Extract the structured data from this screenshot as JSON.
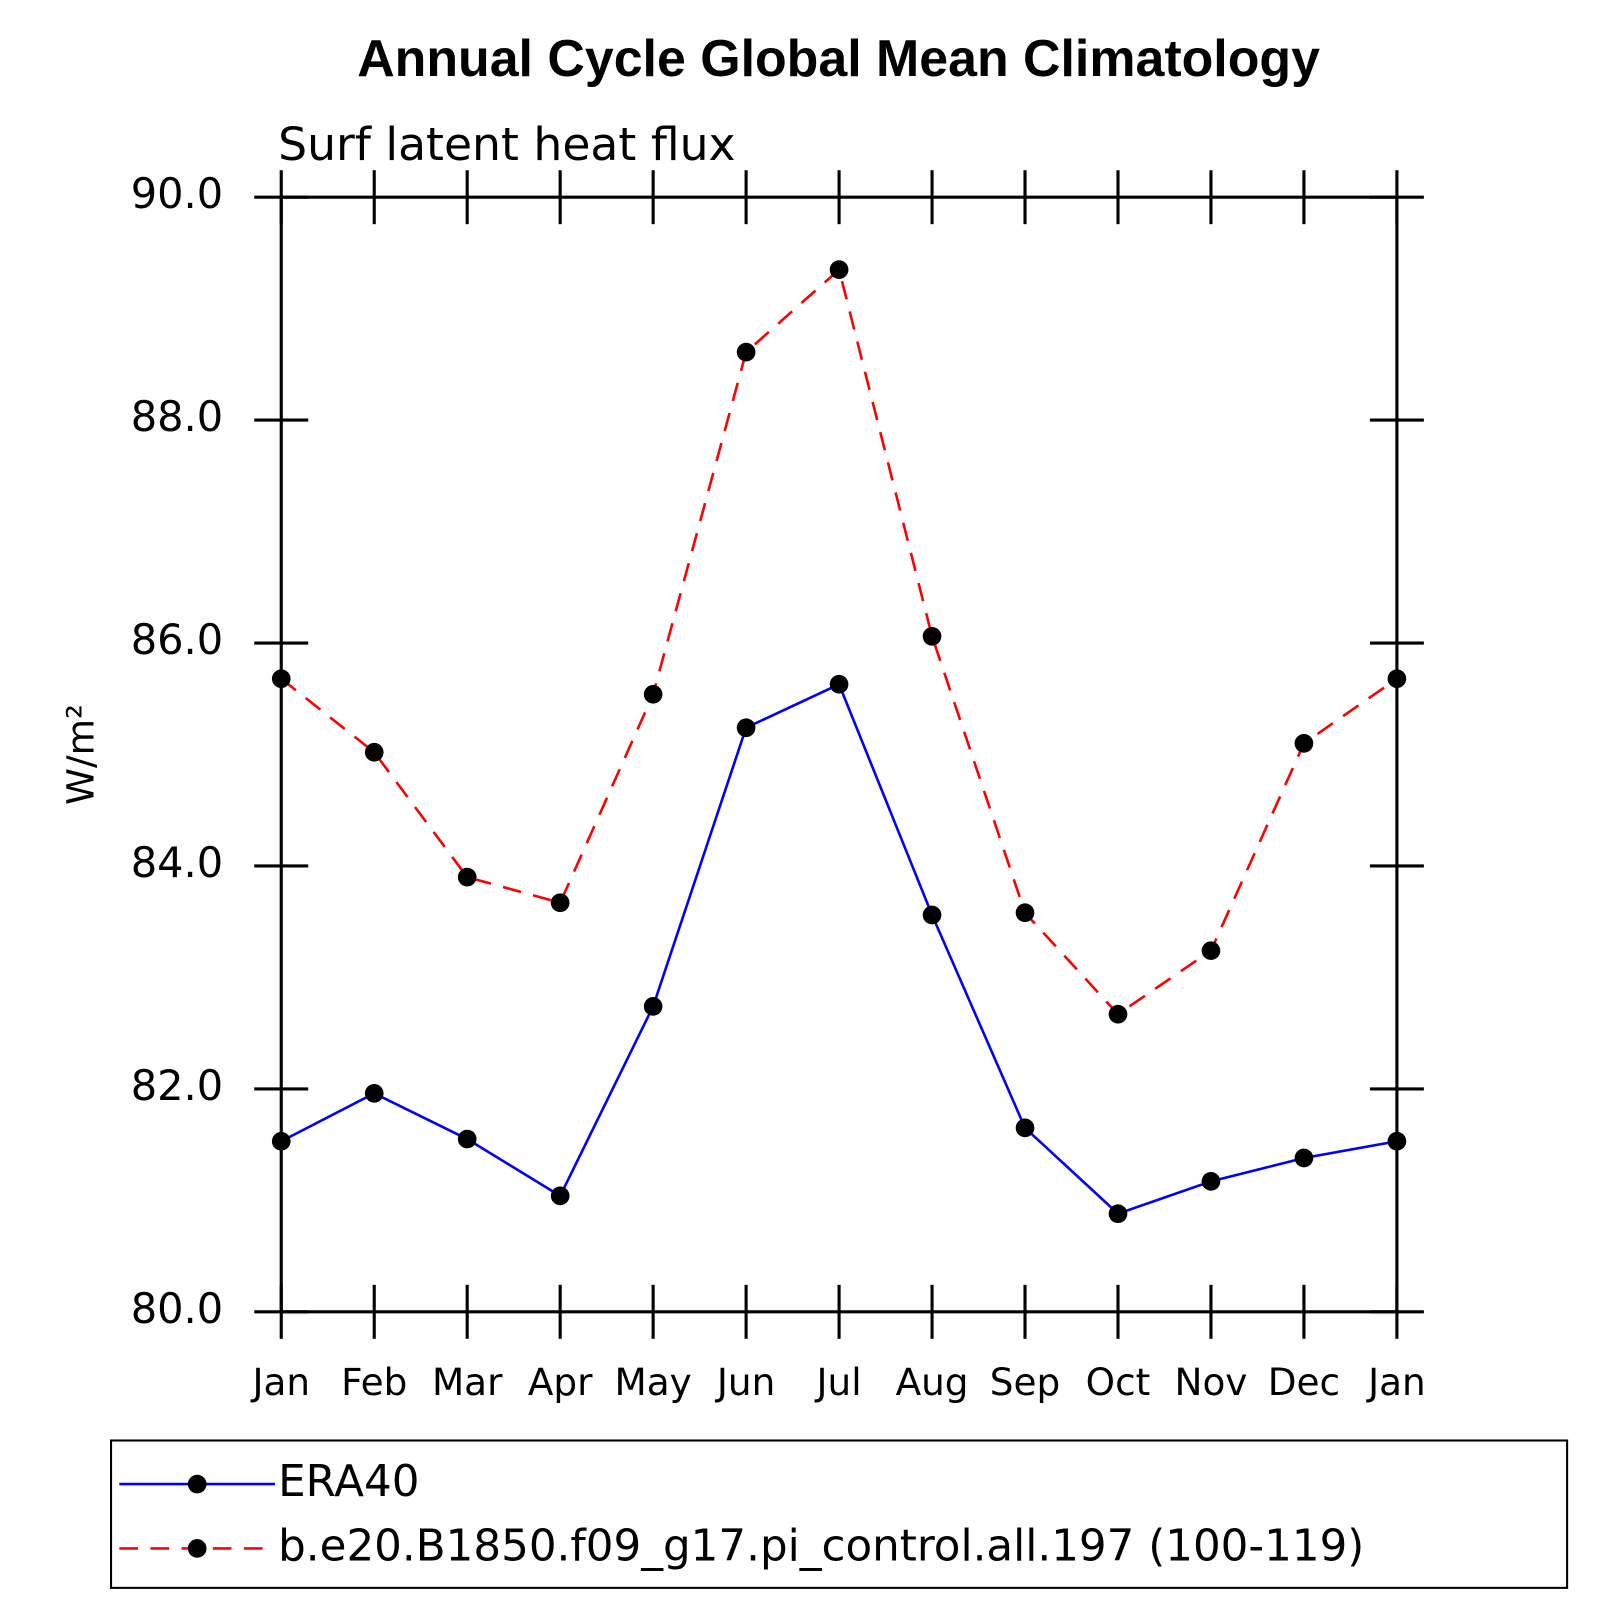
{
  "chart_data": {
    "type": "line",
    "title": "Annual Cycle Global Mean Climatology",
    "subtitle": "Surf latent heat flux",
    "y_label": "W/m²",
    "categories": [
      "Jan",
      "Feb",
      "Mar",
      "Apr",
      "May",
      "Jun",
      "Jul",
      "Aug",
      "Sep",
      "Oct",
      "Nov",
      "Dec",
      "Jan"
    ],
    "series": [
      {
        "name": "ERA40",
        "color": "#0000ff",
        "linestyle": "solid",
        "values": [
          81.53,
          81.96,
          81.55,
          81.04,
          82.74,
          85.24,
          85.63,
          83.56,
          81.65,
          80.88,
          81.17,
          81.38,
          81.53
        ]
      },
      {
        "name": "b.e20.B1850.f09_g17.pi_control.all.197 (100-119)",
        "color": "#ff0000",
        "linestyle": "dashed",
        "values": [
          85.68,
          85.02,
          83.9,
          83.67,
          85.54,
          88.61,
          89.35,
          86.06,
          83.58,
          82.67,
          83.24,
          85.1,
          85.68
        ]
      }
    ],
    "ylim": [
      80,
      90
    ],
    "yticks": [
      {
        "value": 80,
        "label": "80.0"
      },
      {
        "value": 82,
        "label": "82.0"
      },
      {
        "value": 84,
        "label": "84.0"
      },
      {
        "value": 86,
        "label": "86.0"
      },
      {
        "value": 88,
        "label": "88.0"
      },
      {
        "value": 90,
        "label": "90.0"
      }
    ],
    "legend": "bottom"
  }
}
